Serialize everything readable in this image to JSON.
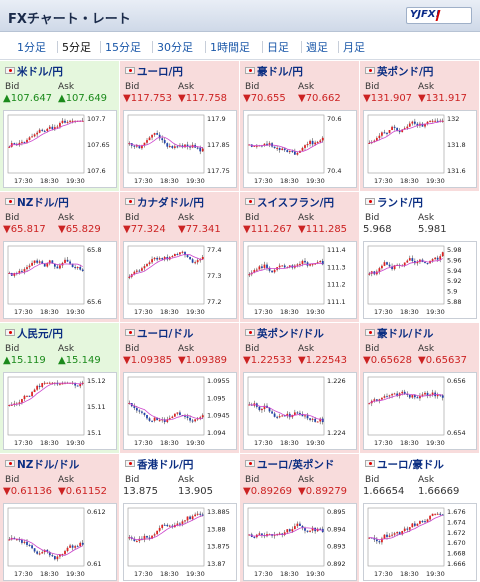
{
  "header": {
    "title": "FXチャート・レート",
    "logo_text": "YJFX!"
  },
  "tabs": [
    "1分足",
    "5分足",
    "15分足",
    "30分足",
    "1時間足",
    "日足",
    "週足",
    "月足"
  ],
  "active_tab": 1,
  "bid_label": "Bid",
  "ask_label": "Ask",
  "pairs": [
    {
      "name": "米ドル/円",
      "trend": "up",
      "bid": "▲107.647",
      "ask": "▲107.649",
      "yticks": [
        "107.7",
        "107.65",
        "107.6"
      ],
      "xticks": [
        "17:30",
        "18:30",
        "19:30"
      ]
    },
    {
      "name": "ユーロ/円",
      "trend": "down",
      "bid": "▼117.753",
      "ask": "▼117.758",
      "yticks": [
        "117.9",
        "117.85",
        "117.75"
      ],
      "xticks": [
        "17:30",
        "18:30",
        "19:30"
      ]
    },
    {
      "name": "豪ドル/円",
      "trend": "down",
      "bid": "▼70.655",
      "ask": "▼70.662",
      "yticks": [
        "70.6",
        "70.4"
      ],
      "xticks": [
        "17:30",
        "18:30",
        "19:30"
      ]
    },
    {
      "name": "英ポンド/円",
      "trend": "down",
      "bid": "▼131.907",
      "ask": "▼131.917",
      "yticks": [
        "132",
        "131.8",
        "131.6"
      ],
      "xticks": [
        "17:30",
        "18:30",
        "19:30"
      ]
    },
    {
      "name": "NZドル/円",
      "trend": "down",
      "bid": "▼65.817",
      "ask": "▼65.829",
      "yticks": [
        "65.8",
        "65.6"
      ],
      "xticks": [
        "17:30",
        "18:30",
        "19:30"
      ]
    },
    {
      "name": "カナダドル/円",
      "trend": "down",
      "bid": "▼77.324",
      "ask": "▼77.341",
      "yticks": [
        "77.4",
        "77.3",
        "77.2"
      ],
      "xticks": [
        "17:30",
        "18:30",
        "19:30"
      ]
    },
    {
      "name": "スイスフラン/円",
      "trend": "down",
      "bid": "▼111.267",
      "ask": "▼111.285",
      "yticks": [
        "111.4",
        "111.3",
        "111.2",
        "111.1"
      ],
      "xticks": [
        "17:30",
        "18:30",
        "19:30"
      ]
    },
    {
      "name": "ランド/円",
      "trend": "flat",
      "bid": "5.968",
      "ask": "5.981",
      "yticks": [
        "5.98",
        "5.96",
        "5.94",
        "5.92",
        "5.9",
        "5.88"
      ],
      "xticks": [
        "17:30",
        "18:30",
        "19:30"
      ]
    },
    {
      "name": "人民元/円",
      "trend": "up",
      "bid": "▲15.119",
      "ask": "▲15.149",
      "yticks": [
        "15.12",
        "15.11",
        "15.1"
      ],
      "xticks": [
        "17:30",
        "18:30",
        "19:30"
      ]
    },
    {
      "name": "ユーロ/ドル",
      "trend": "down",
      "bid": "▼1.09385",
      "ask": "▼1.09389",
      "yticks": [
        "1.0955",
        "1.095",
        "1.0945",
        "1.094"
      ],
      "xticks": [
        "17:30",
        "18:30",
        "19:30"
      ]
    },
    {
      "name": "英ポンド/ドル",
      "trend": "down",
      "bid": "▼1.22533",
      "ask": "▼1.22543",
      "yticks": [
        "1.226",
        "1.224"
      ],
      "xticks": [
        "17:30",
        "18:30",
        "19:30"
      ]
    },
    {
      "name": "豪ドル/ドル",
      "trend": "down",
      "bid": "▼0.65628",
      "ask": "▼0.65637",
      "yticks": [
        "0.656",
        "0.654"
      ],
      "xticks": [
        "17:30",
        "18:30",
        "19:30"
      ]
    },
    {
      "name": "NZドル/ドル",
      "trend": "down",
      "bid": "▼0.61136",
      "ask": "▼0.61152",
      "yticks": [
        "0.612",
        "0.61"
      ],
      "xticks": [
        "17:30",
        "18:30",
        "19:30"
      ]
    },
    {
      "name": "香港ドル/円",
      "trend": "flat",
      "bid": "13.875",
      "ask": "13.905",
      "yticks": [
        "13.885",
        "13.88",
        "13.875",
        "13.87"
      ],
      "xticks": [
        "17:30",
        "18:30",
        "19:30"
      ]
    },
    {
      "name": "ユーロ/英ポンド",
      "trend": "down",
      "bid": "▼0.89269",
      "ask": "▼0.89279",
      "yticks": [
        "0.895",
        "0.894",
        "0.893",
        "0.892"
      ],
      "xticks": [
        "17:30",
        "18:30",
        "19:30"
      ]
    },
    {
      "name": "ユーロ/豪ドル",
      "trend": "flat",
      "bid": "1.66654",
      "ask": "1.66669",
      "yticks": [
        "1.676",
        "1.674",
        "1.672",
        "1.670",
        "1.668",
        "1.666"
      ],
      "xticks": [
        "17:30",
        "18:30",
        "19:30"
      ]
    }
  ],
  "colors": {
    "up": "#1b8a1b",
    "down": "#cc2222",
    "candle_up": "#d22",
    "candle_down": "#2244aa",
    "ma": "#cc44cc"
  }
}
